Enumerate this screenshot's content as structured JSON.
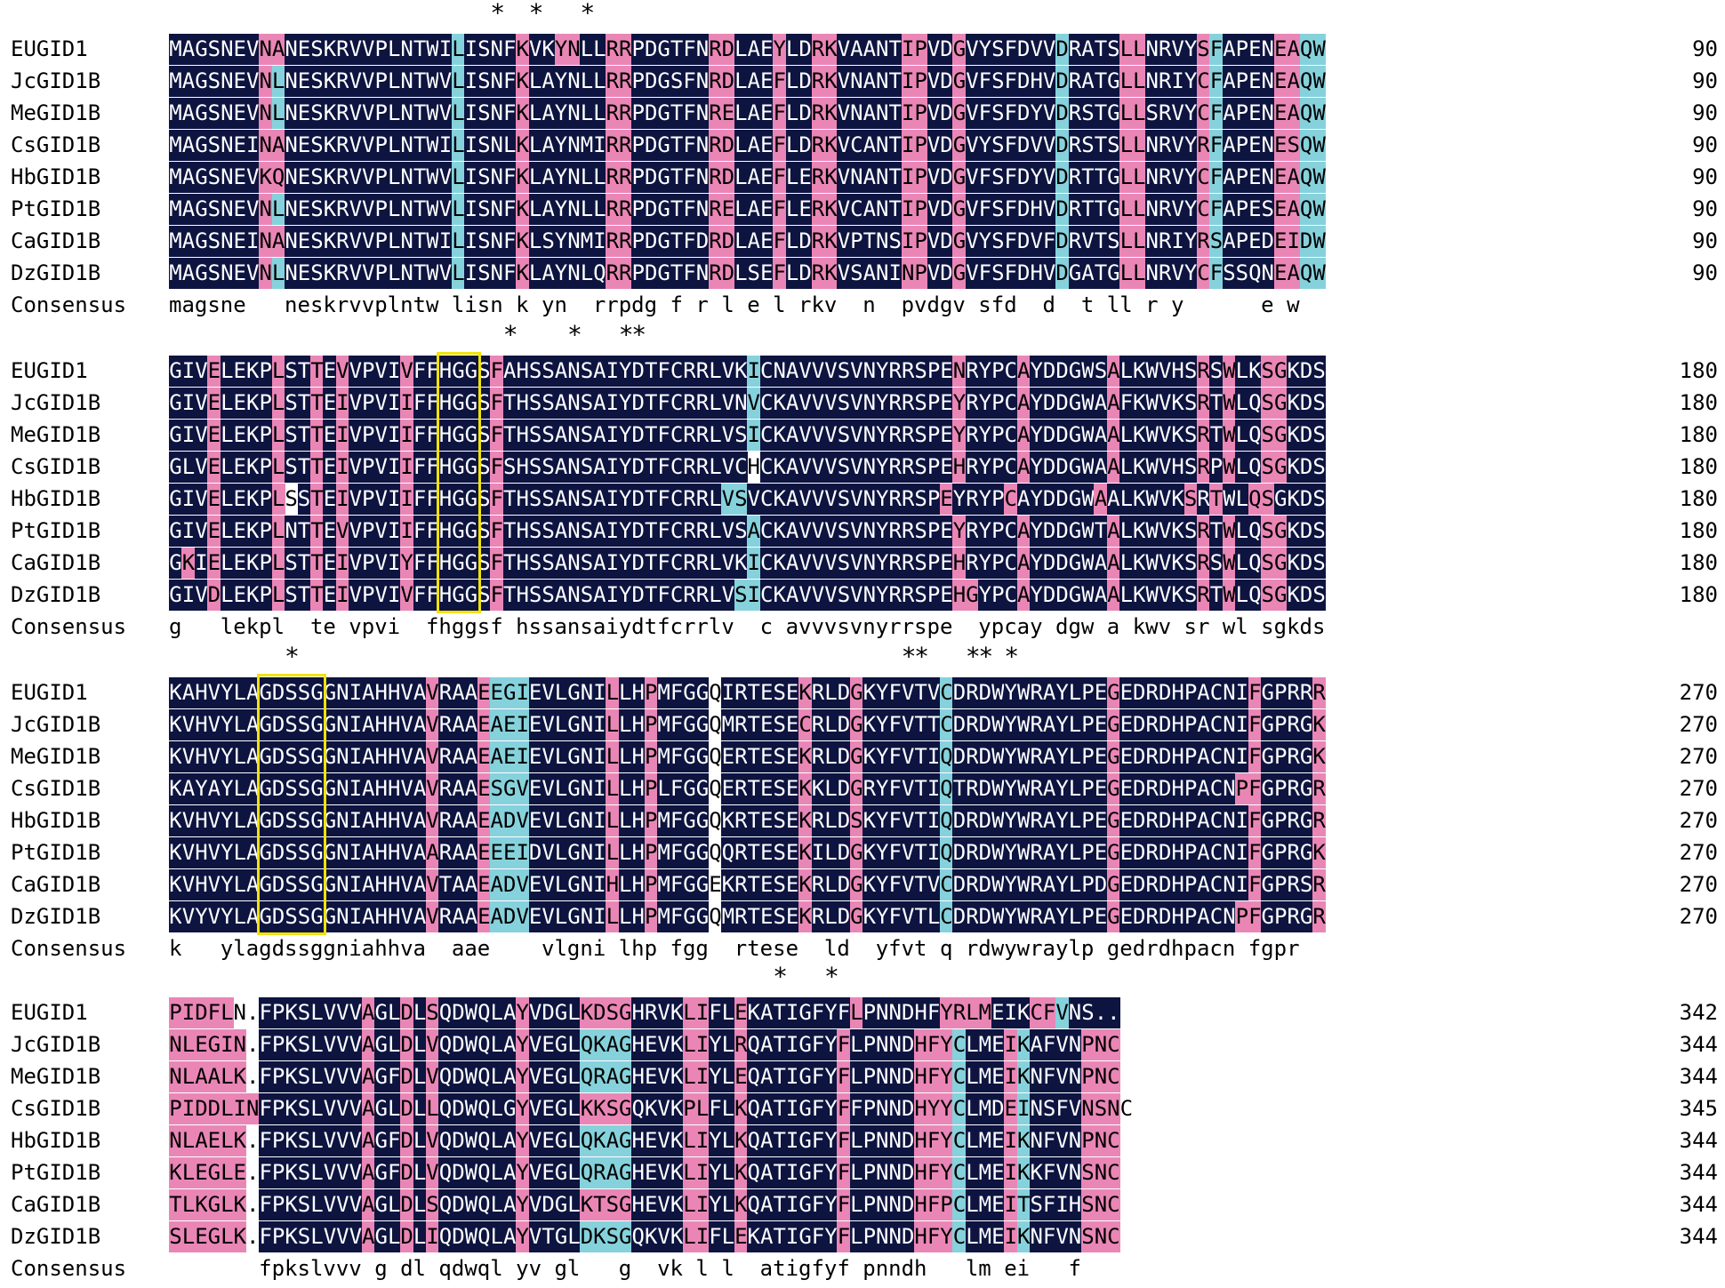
{
  "colors": {
    "identical": "#0d1440",
    "high_similarity": "#ea86b6",
    "low_similarity": "#86d2dc",
    "highlight_box": "#f2e20b"
  },
  "consensus_label": "Consensus",
  "blocks": [
    {
      "end_numbers": [
        "90",
        "90",
        "90",
        "90",
        "90",
        "90",
        "90",
        "90"
      ],
      "rows": [
        {
          "name": "EUGID1",
          "seq": "MAGSNEVNANESKRVVPLNTWILISNFKVKYNLLRRPDGTFNRDLAEYLDRKVAANTIPVDGVYSFDVVDRATSLLNRVYSFAPENEAQW",
          "cls": "dddddddppdddddddddddddcddddpddppddppddddddppdddpddppdddddppddpdddddddcddddppddddpcddddppccpppppppd"
        },
        {
          "name": "JcGID1B",
          "seq": "MAGSNEVNLNESKRVVPLNTWVLISNFKLAYNLLRRPDGSFNRDLAEFLDRKVNANTIPVDGVFSFDHVDRATGLLNRIYCFAPENEAQW",
          "cls": "dddddddpcdddddddddddddcddddpddddddppddddddppdddpddppdddddppddpdddddddcddddppddddpcddddppccpppppppd"
        },
        {
          "name": "MeGID1B",
          "seq": "MAGSNEVNLNESKRVVPLNTWVLISNFKLAYNLLRRPDGTFNRELAEFLDRKVNANTIPVDGVFSFDYVDRSTGLLSRVYCFAPENEAQW",
          "cls": "dddddddpcdddddddddddddcddddpddddddppddddddppdddpddppdddddppddpdddddddcddddppddddpcddddppccpppppppd"
        },
        {
          "name": "CsGID1B",
          "seq": "MAGSNEINANESKRVVPLNTWILISNLKLAYNMIRRPDGTFNRDLAEFLDRKVCANTIPVDGVYSFDVVDRSTSLLNRVYRFAPENESQW",
          "cls": "dddddddppdddddddddddddcddddpddddddppddddddppdddpddppdddddppddpdddddddcddddppddddpcddddppccpppppppd"
        },
        {
          "name": "HbGID1B",
          "seq": "MAGSNEVKQNESKRVVPLNTWVLISNFKLAYNLLRRPDGTFNRDLAEFLERKVNANTIPVDGVFSFDYVDRTTGLLNRVYCFAPENEAQW",
          "cls": "dddddddppdddddddddddddcddddpddddddppddddddppdddpddppdddddppddpdddddddcddddppddddpcddddppccpppppppd"
        },
        {
          "name": "PtGID1B",
          "seq": "MAGSNEVNLNESKRVVPLNTWVLISNFKLAYNLLRRPDGTFNRELAEFLERKVCANTIPVDGVFSFDHVDRTTGLLNRVYCFAPESEAQW",
          "cls": "dddddddpcdddddddddddddcddddpddddddppddddddppdddpddppdddddppddpdddddddcddddppddddpcddddppccpppppppd"
        },
        {
          "name": "CaGID1B",
          "seq": "MAGSNEINANESKRVVPLNTWILISNFKLSYNMIRRPDGTFDRDLAEFLDRKVPTNSIPVDGVYSFDVFDRVTSLLNRIYRSAPEDEIDW",
          "cls": "dddddddppdddddddddddddcddddpddddddppddddddppdddpddppdddddppddpdddddddcddddppddddpcddddppccpppppppd"
        },
        {
          "name": "DzGID1B",
          "seq": "MAGSNEVNLNESKRVVPLNTWVLISNFKLAYNLQRRPDGTFNRDLSEFLDRKVSANINPVDGVFSFDHVDGATGLLNRVYCFSSQNEAQW",
          "cls": "dddddddpcdddddddddddddcddddpddddddppddddddppdddpddppdddddppddpdddddddcddddppddddpcddddppccpppppppd"
        }
      ],
      "consensus": "magsne   neskrvvplntw lisn k yn  rrpdg f r l e l rkv  n  pvdgv sfd  d  t ll r y      e w",
      "stars": [
        "*",
        "*",
        "*"
      ]
    },
    {
      "end_numbers": [
        "180",
        "180",
        "180",
        "180",
        "180",
        "180",
        "180",
        "180"
      ],
      "rows": [
        {
          "name": "EUGID1",
          "seq": "GIVELEKPLSTTEVVPVIVFFHGGSFAHSSANSAIYDTFCRRLVKICNAVVVSVNYRRSPENRYPCAYDDGWSALKWVHSRSWLKSGKDS",
          "cls": "dddpddddpddpdpddddpddddddpdddddddddddddddddddcdddddddddddddddpddddpddddddpddddddpdpddppdddddd"
        },
        {
          "name": "JcGID1B",
          "seq": "GIVELEKPLSTTEIVPVIIFFHGGSFTHSSANSAIYDTFCRRLVNVCKAVVVSVNYRRSPEYRYPCAYDDGWAAFKWVKSRTWLQSGKDS",
          "cls": "dddpddddpddpdpddddpddddddpdddddddddddddddddddcdddddddddddddddpddddpddddddpddddddpdpddppdddddd"
        },
        {
          "name": "MeGID1B",
          "seq": "GIVELEKPLSTTEIVPVIIFFHGGSFTHSSANSAIYDTFCRRLVSICKAVVVSVNYRRSPEYRYPCAYDDGWAALKWVKSRTWLQSGKDS",
          "cls": "dddpddddpddpdpddddpddddddpdddddddddddddddddddcdddddddddddddddpddddpddddddpddddddpdpddppdddddd"
        },
        {
          "name": "CsGID1B",
          "seq": "GLVELEKPLSTTEIVPVIIFFHGGSFSHSSANSAIYDTFCRRLVCHCKAVVVSVNYRRSPEHRYPCAYDDGWAALKWVHSRPWLQSGKDS",
          "cls": "dddpddddpddpdpddddpddddddpdddddddddddddddddddwdddddddddddddddpddddpddddddpddddddpdpddppdddddd"
        },
        {
          "name": "HbGID1B",
          "seq": "GIVELEKPLSSTEIVPVIIFFHGGSFTHSSANSAIYDTFCRRLVSVCKAVVVSVNYRRSPEYRYPCAYDDGWAALKWVKSRTWLQSGKDS",
          "cls": "dddpddddpwdpdpddddpddddddpdddddddddddddddddccdddddddddddddddpddddpddddddpddddddpdpddppdddddd"
        },
        {
          "name": "PtGID1B",
          "seq": "GIVELEKPLNTTEVVPVIIFFHGGSFTHSSANSAIYDTFCRRLVSACKAVVVSVNYRRSPEYRYPCAYDDGWTALKWVKSRTWLQSGKDS",
          "cls": "dddpddddpddpdpddddpddddddpdddddddddddddddddddcdddddddddddddddpddddpddddddpddddddpdpddppdddddd"
        },
        {
          "name": "CaGID1B",
          "seq": "GKIELEKPLSTTEIVPVIYFFHGGSFTHSSANSAIYDTFCRRLVKICKAVVVSVNYRRSPEHRYPCAYDDGWAALKWVKSRSWLQSGKDS",
          "cls": "dpdpddddpddpdpddddpddddddpdddddddddddddddddddcdddddddddddddddpddddpddddddpddddddpdpddppdddddd"
        },
        {
          "name": "DzGID1B",
          "seq": "GIVDLEKPLSTTEIVPVIVFFHGGSFTHSSANSAIYDTFCRRLVSICKAVVVSVNYRRSPEHGYPCAYDDGWAALKWVKSRTWLQSGKDS",
          "cls": "dddpddddpddpdpddddpddddddpddddddddddddddddddccdddddddddddddddppdddpddddddpddddddpdpddppdddddd"
        }
      ],
      "consensus": "g   lekpl  te vpvi  fhggsf hssansaiydtfcrrlv  c avvvsvnyrrspe  ypcay dgw a kwv sr wl sgkds",
      "stars": [
        "*",
        "*",
        "**"
      ]
    },
    {
      "end_numbers": [
        "270",
        "270",
        "270",
        "270",
        "270",
        "270",
        "270",
        "270"
      ],
      "rows": [
        {
          "name": "EUGID1",
          "seq": "KAHVYLAGDSSGGNIAHHVAVRAAEEGIEVLGNILLHPMFGGQIRTESEKRLDGKYFVTVCDRDWYWRAYLPEGEDRDHPACNIFGPRRR",
          "cls": "ddddddddddddddddddddpdddpcccddddddpddpddddwddddddpdddpddddddcddddddddddddpddddddddddpddddppcd"
        },
        {
          "name": "JcGID1B",
          "seq": "KVHVYLAGDSSGGNIAHHVAVRAAEAEIEVLGNILLHPMFGGQMRTESECRLDGKYFVTTCDRDWYWRAYLPEGEDRDHPACNIFGPRGK",
          "cls": "ddddddddddddddddddddpdddpcccddddddpddpddddwddddddpdddpddddddcddddddddddddpddddddddddpddddppcc"
        },
        {
          "name": "MeGID1B",
          "seq": "KVHVYLAGDSSGGNIAHHVAVRAAEAEIEVLGNILLHPMFGGQERTESEKRLDGKYFVTIQDRDWYWRAYLPEGEDRDHPACNIFGPRGK",
          "cls": "ddddddddddddddddddddpdddpcccddddddpddpddddwddddddpdddpddddddcddddddddddddpddddddddddpddddppcc"
        },
        {
          "name": "CsGID1B",
          "seq": "KAYAYLAGDSSGGNIAHHVAVRAAESGVEVLGNILLHPLFGGQERTESEKKLDGRYFVTIQTRDWYWRAYLPEGEDRDHPACNPFGPRGR",
          "cls": "ddddddddddddddddddddpdddpcccddddddpddpddddwddddddpdddpddddddcddddddddddddpdddddddddppddddppcc"
        },
        {
          "name": "HbGID1B",
          "seq": "KVHVYLAGDSSGGNIAHHVAVRAAEADVEVLGNILLHPMFGGQKRTESEKRLDSKYFVTIQDRDWYWRAYLPEGEDRDHPACNIFGPRGR",
          "cls": "ddddddddddddddddddddpdddpcccddddddpddpddddwddddddpdddpddddddcddddddddddddpddddddddddpddddppcc"
        },
        {
          "name": "PtGID1B",
          "seq": "KVHVYLAGDSSGGNIAHHVAARAAEEEIDVLGNILLHPMFGGQQRTESEKILDGKYFVTIQDRDWYWRAYLPEGEDRDHPACNIFGPRGK",
          "cls": "ddddddddddddddddddddpdddpcccddddddpddpddddwddddddpdddpddddddcddddddddddddpddddddddddpddddppcc"
        },
        {
          "name": "CaGID1B",
          "seq": "KVHVYLAGDSSGGNIAHHVAVTAAEADVEVLGNIHLHPMFGGEKRTESEKRLDGKYFVTVCDRDWYWRAYLPDGEDRDHPACNIFGPRSR",
          "cls": "ddddddddddddddddddddpdddpcccddddddpddpddddwddddddpdddpddddddcddddddddddddpddddddddddpddddppcc"
        },
        {
          "name": "DzGID1B",
          "seq": "KVYVYLAGDSSGGNIAHHVAVRAAEADVEVLGNILLHPMFGGQMRTESEKRLDGKYFVTLCDRDWYWRAYLPEGEDRDHPACNPFGPRGR",
          "cls": "ddddddddddddddddddddpdddpcccddddddpddpddddwddddddpdddpddddddcddddddddddddpdddddddddppddddppcc"
        }
      ],
      "consensus": "k   ylagdssggniahhva  aae    vlgni lhp fgg  rtese  ld  yfvt q rdwywraylp gedrdhpacn fgpr",
      "stars": [
        "*",
        "**",
        "**",
        "*"
      ]
    },
    {
      "end_numbers": [
        "342",
        "344",
        "344",
        "345",
        "344",
        "344",
        "344",
        "344"
      ],
      "rows": [
        {
          "name": "EUGID1",
          "seq": "PIDFLN.FPKSLVVVAGLDLSQDWQLAYVDGLKDSGHRVKLIFLEKATIGFYFLPNNDHFYRLMEIKCFVNS..",
          "cls": "pppppwwddddddddpddpdpddddddpddddppppddddppddpddddddddpddddddppppdddppcddddww"
        },
        {
          "name": "JcGID1B",
          "seq": "NLEGIN.FPKSLVVVAGLDLVQDWQLAYVEGLQKAGHEVKLIYLRQATIGFYFLPNNDHFYCLMEIKAFVNPNC",
          "cls": "ppppppwddddddddpddpdpddddddpddddccccddddppddpdddddddpdddddpppcdddpcddddppp"
        },
        {
          "name": "MeGID1B",
          "seq": "NLAALK.FPKSLVVVAGFDLVQDWQLAYVEGLQRAGHEVKLIYLEQATIGFYFLPNNDHFYCLMEIKNFVNPNC",
          "cls": "ppppppwddddddddpddpdpddddddpddddccccddddppddpdddddddpdddddpppcdddpcddddppp"
        },
        {
          "name": "CsGID1B",
          "seq": "PIDDLINFPKSLVVVAGLDLLQDWQLGYVEGLKKSGQKVKPLFLKQATIGFYFFPNNDHYYCLMDEINSFVNSNC",
          "cls": "pppppppddddddddpddpdpddddddpddddppppddddppddpdddddddpdddddpppcdddpcddddppp"
        },
        {
          "name": "HbGID1B",
          "seq": "NLAELK.FPKSLVVVAGFDLVQDWQLAYVEGLQKAGHEVKLIYLKQATIGFYFLPNNDHFYCLMEIKNFVNPNC",
          "cls": "ppppppwddddddddpddpdpddddddpddddccccddddppddpdddddddpdddddpppcdddpcddddppp"
        },
        {
          "name": "PtGID1B",
          "seq": "KLEGLE.FPKSLVVVAGFDLVQDWQLAYVEGLQRAGHEVKLIYLKQATIGFYFLPNNDHFYCLMEIKKFVNSNC",
          "cls": "ppppppwddddddddpddpdpddddddpddddccccddddppddpdddddddpdddddpppcdddpcddddppp"
        },
        {
          "name": "CaGID1B",
          "seq": "TLKGLK.FPKSLVVVAGLDLSQDWQLAYVDGLKTSGHEVKLIYLKQATIGFYFLPNNDHFPCLMEITSFIHSNC",
          "cls": "ppppppwddddddddpddpdpddddddpddddppppddddppddpdddddddpdddddpppcdddpcddddppp"
        },
        {
          "name": "DzGID1B",
          "seq": "SLEGLK.FPKSLVVVAGLDLIQDWQLAYVTGLDKSGQKVKLIFLEKATIGFYFLPNNDHFYCLMEIKNFVNSNC",
          "cls": "ppppppwddddddddpddpdpddddddpddddccccddddppddpdddddddpdddddpppcdddpcddddppp"
        }
      ],
      "consensus": "       fpkslvvv g dl qdwql yv gl   g  vk l l  atigfyf pnndh   lm ei   f",
      "stars": [
        "*",
        "*"
      ]
    }
  ]
}
